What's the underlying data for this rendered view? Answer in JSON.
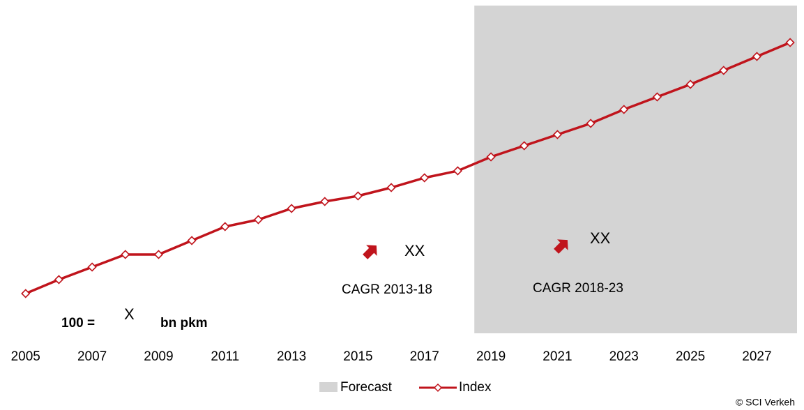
{
  "chart_data": {
    "type": "line",
    "x": [
      2005,
      2006,
      2007,
      2008,
      2009,
      2010,
      2011,
      2012,
      2013,
      2014,
      2015,
      2016,
      2017,
      2018,
      2019,
      2020,
      2021,
      2022,
      2023,
      2024,
      2025,
      2026,
      2027,
      2028
    ],
    "series": [
      {
        "name": "Index",
        "color": "#c0141c",
        "values": [
          100,
          105,
          109.5,
          114,
          114,
          119,
          124,
          126.5,
          130.5,
          133,
          135,
          138,
          141.5,
          144,
          149,
          153,
          157,
          161,
          166,
          170.5,
          175,
          180,
          185,
          190
        ]
      }
    ],
    "forecast": {
      "name": "Forecast",
      "color": "#d4d4d4",
      "start": 2018.5
    },
    "xlim": [
      2004.25,
      2028.25
    ],
    "xticks": [
      2005,
      2007,
      2009,
      2011,
      2013,
      2015,
      2017,
      2019,
      2021,
      2023,
      2025,
      2027
    ],
    "ylim": [
      85.75,
      203.25
    ],
    "annotations": {
      "base_prefix": "100 =",
      "base_value": "X",
      "base_unit": "bn pkm",
      "cagr1_value": "XX",
      "cagr1_label": "CAGR 2013-18",
      "cagr2_value": "XX",
      "cagr2_label": "CAGR 2018-23"
    },
    "source": "© SCI Verkeh"
  }
}
